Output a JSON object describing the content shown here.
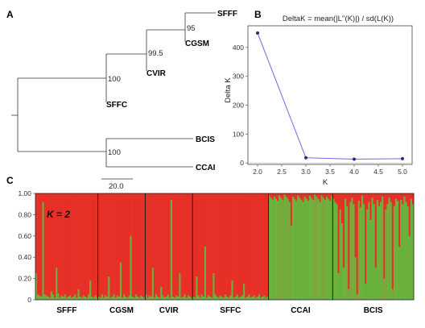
{
  "chart_data": [
    {
      "panel": "A",
      "type": "tree",
      "taxa": [
        "SFFF",
        "CGSM",
        "CVIR",
        "SFFC",
        "BCIS",
        "CCAI"
      ],
      "node_support": [
        "95",
        "99.5",
        "100",
        "100"
      ],
      "scale_bar_label": "20.0"
    },
    {
      "panel": "B",
      "type": "line",
      "title": "DeltaK = mean(|L''(K)|) / sd(L(K))",
      "xlabel": "K",
      "ylabel": "Delta K",
      "x": [
        2.0,
        3.0,
        4.0,
        5.0
      ],
      "y": [
        450,
        18,
        13,
        15
      ],
      "xlim": [
        1.8,
        5.2
      ],
      "ylim": [
        -5,
        475
      ],
      "xticks": [
        "2.0",
        "2.5",
        "3.0",
        "3.5",
        "4.0",
        "4.5",
        "5.0"
      ],
      "yticks": [
        "0",
        "100",
        "200",
        "300",
        "400"
      ],
      "colors": {
        "line": "#6b6be0",
        "marker": "#2a2a8c"
      }
    },
    {
      "panel": "C",
      "type": "bar",
      "annotation": "K = 2",
      "ylim": [
        0,
        1
      ],
      "yticks": [
        "0",
        "0.20",
        "0.40",
        "0.60",
        "0.80",
        "1.00"
      ],
      "colors": {
        "cluster1": "#e63027",
        "cluster2": "#6ab43e"
      },
      "populations": [
        {
          "name": "SFFF",
          "cluster2": [
            0.25,
            0.05,
            0.04,
            0.03,
            0.92,
            0.05,
            0.04,
            0.03,
            0.02,
            0.08,
            0.05,
            0.02,
            0.3,
            0.06,
            0.02,
            0.04,
            0.03,
            0.05,
            0.02,
            0.03,
            0.04,
            0.02,
            0.03,
            0.05,
            0.02,
            0.1,
            0.03,
            0.02,
            0.04,
            0.03,
            0.02,
            0.05,
            0.18,
            0.03,
            0.02,
            0.04,
            0.02
          ]
        },
        {
          "name": "CGSM",
          "cluster2": [
            0.03,
            0.02,
            0.05,
            0.02,
            0.04,
            0.03,
            0.22,
            0.02,
            0.03,
            0.05,
            0.02,
            0.04,
            0.03,
            0.35,
            0.02,
            0.05,
            0.03,
            0.02,
            0.04,
            0.6,
            0.03,
            0.02,
            0.05,
            0.03,
            0.02,
            0.04,
            0.03,
            0.02
          ]
        },
        {
          "name": "CVIR",
          "cluster2": [
            0.05,
            0.02,
            0.04,
            0.03,
            0.3,
            0.02,
            0.05,
            0.03,
            0.02,
            0.12,
            0.04,
            0.02,
            0.03,
            0.05,
            0.02,
            0.94,
            0.03,
            0.02,
            0.04,
            0.03,
            0.25,
            0.02,
            0.03,
            0.05,
            0.02,
            0.04,
            0.03,
            0.02
          ]
        },
        {
          "name": "SFFC",
          "cluster2": [
            0.03,
            0.02,
            0.22,
            0.04,
            0.02,
            0.05,
            0.03,
            0.5,
            0.02,
            0.04,
            0.03,
            0.02,
            0.25,
            0.05,
            0.03,
            0.02,
            0.04,
            0.03,
            0.02,
            0.05,
            0.03,
            0.02,
            0.04,
            0.18,
            0.02,
            0.03,
            0.05,
            0.02,
            0.03,
            0.04,
            0.15,
            0.02,
            0.03,
            0.05,
            0.02,
            0.03,
            0.04,
            0.02,
            0.03,
            0.05,
            0.02,
            0.03,
            0.04,
            0.02,
            0.03
          ]
        },
        {
          "name": "CCAI",
          "cluster2": [
            0.98,
            0.96,
            0.94,
            0.97,
            0.95,
            0.93,
            0.98,
            0.96,
            0.94,
            0.99,
            0.97,
            0.95,
            0.92,
            0.7,
            0.97,
            0.95,
            0.93,
            0.98,
            0.96,
            0.94,
            0.92,
            0.97,
            0.95,
            0.93,
            0.98,
            0.96,
            0.94,
            0.99,
            0.97,
            0.95,
            0.92,
            0.98,
            0.96,
            0.94,
            0.97,
            0.95,
            0.93,
            0.98
          ]
        },
        {
          "name": "BCIS",
          "cluster2": [
            0.95,
            0.92,
            0.9,
            0.25,
            0.85,
            0.72,
            0.3,
            0.95,
            0.88,
            0.1,
            0.92,
            0.96,
            0.9,
            0.4,
            0.05,
            0.93,
            0.87,
            0.98,
            0.9,
            0.15,
            0.85,
            0.92,
            0.75,
            0.96,
            0.9,
            0.3,
            0.94,
            0.88,
            0.92,
            0.97,
            0.2,
            0.85,
            0.9,
            0.96,
            0.92,
            0.1,
            0.88,
            0.95,
            0.93,
            0.5,
            0.94,
            0.9,
            0.97,
            0.92,
            0.88,
            0.6,
            0.95,
            0.9
          ]
        }
      ]
    }
  ],
  "panel_labels": [
    "A",
    "B",
    "C"
  ]
}
